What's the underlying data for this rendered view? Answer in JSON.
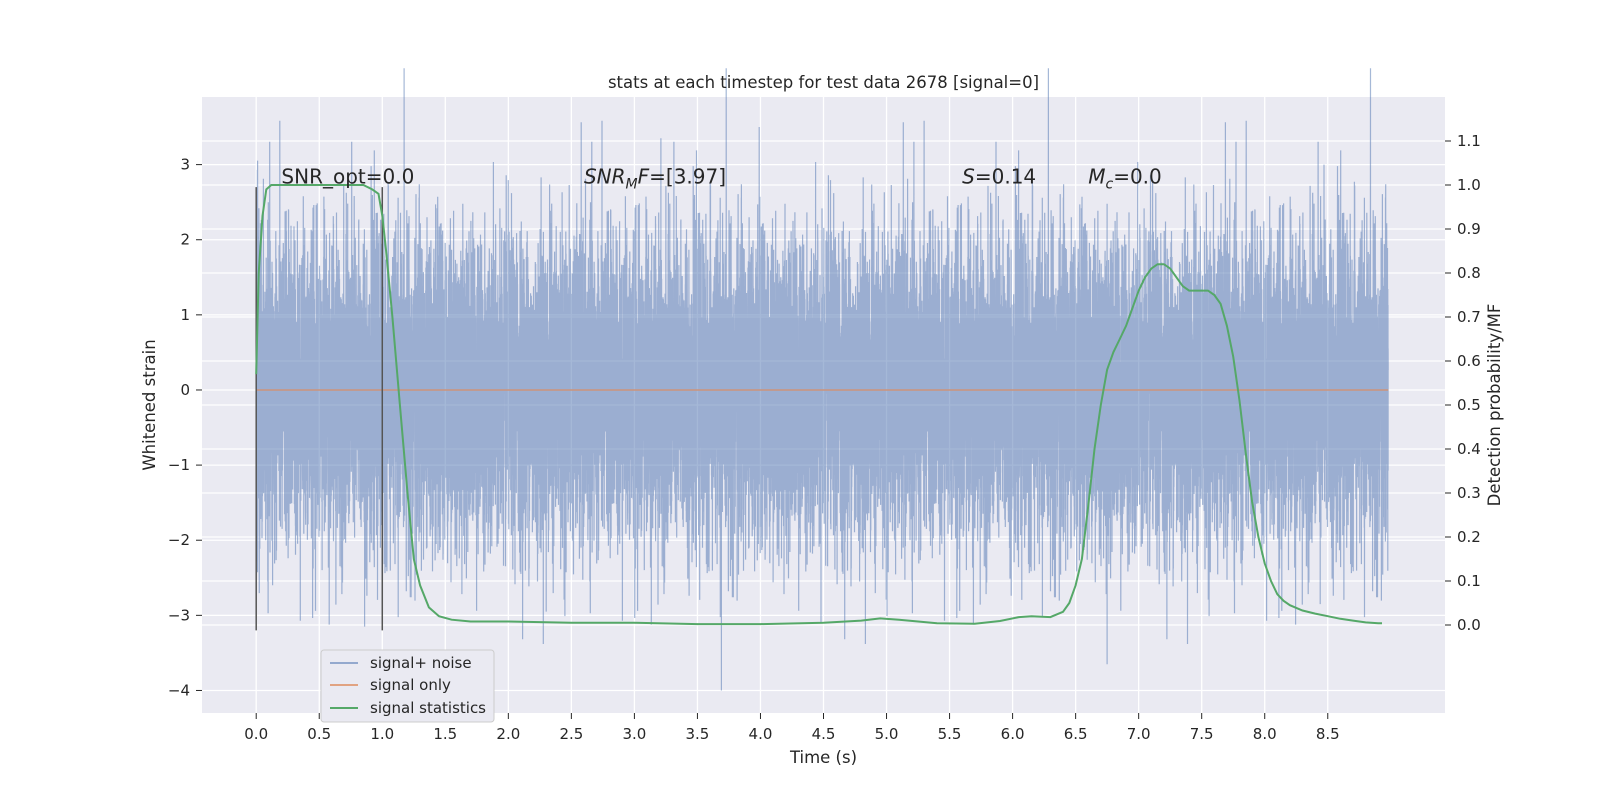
{
  "chart_data": {
    "type": "line",
    "title": "stats at each timestep for test data 2678 [signal=0]",
    "xlabel": "Time (s)",
    "ylabel": "Whitened strain",
    "ylabel_right": "Detection probability/MF",
    "xlim": [
      -0.43,
      9.43
    ],
    "ylim": [
      -4.3,
      3.9
    ],
    "ylim_right": [
      -0.2,
      1.2
    ],
    "x_ticks": [
      0.0,
      0.5,
      1.0,
      1.5,
      2.0,
      2.5,
      3.0,
      3.5,
      4.0,
      4.5,
      5.0,
      5.5,
      6.0,
      6.5,
      7.0,
      7.5,
      8.0,
      8.5
    ],
    "x_tick_labels": [
      "0.0",
      "0.5",
      "1.0",
      "1.5",
      "2.0",
      "2.5",
      "3.0",
      "3.5",
      "4.0",
      "4.5",
      "5.0",
      "5.5",
      "6.0",
      "6.5",
      "7.0",
      "7.5",
      "8.0",
      "8.5"
    ],
    "y_ticks": [
      -4,
      -3,
      -2,
      -1,
      0,
      1,
      2,
      3
    ],
    "y_tick_labels": [
      "−4",
      "−3",
      "−2",
      "−1",
      "0",
      "1",
      "2",
      "3"
    ],
    "y_right_ticks": [
      0.0,
      0.1,
      0.2,
      0.3,
      0.4,
      0.5,
      0.6,
      0.7,
      0.8,
      0.9,
      1.0,
      1.1
    ],
    "y_right_tick_labels": [
      "0.0",
      "0.1",
      "0.2",
      "0.3",
      "0.4",
      "0.5",
      "0.6",
      "0.7",
      "0.8",
      "0.9",
      "1.0",
      "1.1"
    ],
    "grid": true,
    "legend_position": "lower-left",
    "series": [
      {
        "name": "signal+ noise",
        "color": "#4c72b0",
        "axis": "left",
        "description_only": "dense whitened noise trace",
        "x_range": [
          0.0,
          8.98
        ],
        "sample_rate_hz": 2048,
        "std": 1.0,
        "spikes": [
          [
            3.21,
            3.35
          ],
          [
            3.99,
            3.5
          ],
          [
            8.47,
            3.0
          ],
          [
            3.69,
            -4.0
          ],
          [
            6.75,
            -3.65
          ],
          [
            0.86,
            -3.15
          ],
          [
            4.48,
            -3.1
          ],
          [
            2.3,
            -2.95
          ],
          [
            8.44,
            -2.85
          ],
          [
            0.13,
            -2.6
          ],
          [
            7.82,
            -2.6
          ]
        ]
      },
      {
        "name": "signal only",
        "color": "#dd8452",
        "axis": "left",
        "x": [
          0.0,
          8.98
        ],
        "y": [
          0.0,
          0.0
        ]
      },
      {
        "name": "signal statistics",
        "color": "#55a868",
        "axis": "right",
        "x": [
          0.0,
          0.02,
          0.05,
          0.08,
          0.12,
          0.2,
          0.3,
          0.5,
          0.7,
          0.85,
          0.92,
          0.97,
          1.0,
          1.03,
          1.08,
          1.14,
          1.2,
          1.25,
          1.3,
          1.37,
          1.45,
          1.55,
          1.7,
          2.0,
          2.5,
          3.0,
          3.5,
          4.0,
          4.5,
          4.8,
          4.95,
          5.1,
          5.4,
          5.7,
          5.9,
          6.05,
          6.15,
          6.3,
          6.4,
          6.45,
          6.5,
          6.55,
          6.6,
          6.65,
          6.7,
          6.75,
          6.8,
          6.85,
          6.9,
          6.95,
          7.0,
          7.05,
          7.1,
          7.15,
          7.2,
          7.25,
          7.3,
          7.35,
          7.4,
          7.45,
          7.5,
          7.55,
          7.6,
          7.65,
          7.7,
          7.75,
          7.8,
          7.85,
          7.9,
          7.95,
          8.0,
          8.05,
          8.1,
          8.15,
          8.2,
          8.3,
          8.4,
          8.5,
          8.6,
          8.7,
          8.8,
          8.9,
          8.93
        ],
        "y": [
          0.57,
          0.8,
          0.93,
          0.99,
          1.0,
          1.0,
          1.0,
          1.0,
          1.0,
          1.0,
          0.99,
          0.98,
          0.93,
          0.85,
          0.7,
          0.5,
          0.3,
          0.15,
          0.09,
          0.04,
          0.02,
          0.012,
          0.008,
          0.008,
          0.005,
          0.005,
          0.002,
          0.002,
          0.005,
          0.01,
          0.015,
          0.012,
          0.004,
          0.003,
          0.009,
          0.018,
          0.02,
          0.018,
          0.03,
          0.05,
          0.09,
          0.15,
          0.27,
          0.4,
          0.5,
          0.58,
          0.62,
          0.65,
          0.68,
          0.72,
          0.76,
          0.79,
          0.81,
          0.82,
          0.82,
          0.81,
          0.79,
          0.77,
          0.76,
          0.76,
          0.76,
          0.76,
          0.75,
          0.73,
          0.68,
          0.61,
          0.51,
          0.39,
          0.28,
          0.2,
          0.14,
          0.1,
          0.07,
          0.055,
          0.045,
          0.033,
          0.026,
          0.02,
          0.014,
          0.01,
          0.006,
          0.004,
          0.004
        ]
      }
    ],
    "vertical_markers": {
      "x": [
        0.0,
        1.0
      ],
      "y_range": [
        -3.2,
        2.7
      ],
      "color": "#555555"
    },
    "annotations": [
      {
        "text": "SNR_opt=0.0",
        "x": 0.2,
        "y": 2.8
      },
      {
        "base": "SNR",
        "sub": "M",
        "rest": "F=[3.97]",
        "x": 2.6,
        "y": 2.8
      },
      {
        "base": "S",
        "sub": "",
        "rest": "=0.14",
        "x": 5.6,
        "y": 2.8
      },
      {
        "base": "M",
        "sub": "c",
        "rest": "=0.0",
        "x": 6.6,
        "y": 2.8
      }
    ]
  },
  "legend": {
    "items": [
      {
        "label": "signal+ noise",
        "color": "#4c72b0"
      },
      {
        "label": "signal only",
        "color": "#dd8452"
      },
      {
        "label": "signal statistics",
        "color": "#55a868"
      }
    ]
  },
  "style": {
    "axes_facecolor": "#eaeaf2",
    "grid_color": "#ffffff"
  }
}
